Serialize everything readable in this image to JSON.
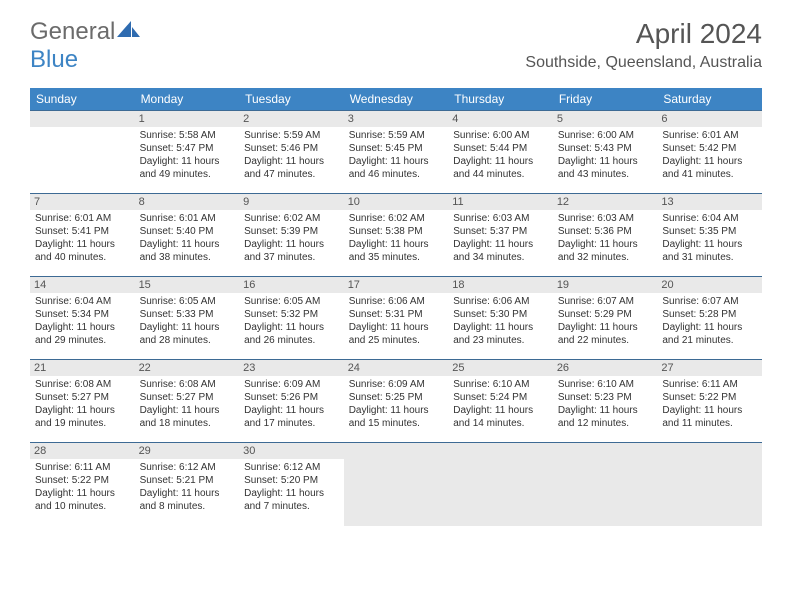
{
  "logo": {
    "word1": "General",
    "word2": "Blue"
  },
  "title": "April 2024",
  "subtitle": "Southside, Queensland, Australia",
  "columns": [
    "Sunday",
    "Monday",
    "Tuesday",
    "Wednesday",
    "Thursday",
    "Friday",
    "Saturday"
  ],
  "colors": {
    "header_bg": "#3d84c4",
    "header_fg": "#ffffff",
    "daynum_bg": "#e9e9e9",
    "border": "#3d6a94",
    "text": "#333333",
    "title_color": "#555555",
    "logo_accent": "#3d84c4"
  },
  "weeks": [
    [
      {
        "n": "",
        "lines": []
      },
      {
        "n": "1",
        "lines": [
          "Sunrise: 5:58 AM",
          "Sunset: 5:47 PM",
          "Daylight: 11 hours",
          "and 49 minutes."
        ]
      },
      {
        "n": "2",
        "lines": [
          "Sunrise: 5:59 AM",
          "Sunset: 5:46 PM",
          "Daylight: 11 hours",
          "and 47 minutes."
        ]
      },
      {
        "n": "3",
        "lines": [
          "Sunrise: 5:59 AM",
          "Sunset: 5:45 PM",
          "Daylight: 11 hours",
          "and 46 minutes."
        ]
      },
      {
        "n": "4",
        "lines": [
          "Sunrise: 6:00 AM",
          "Sunset: 5:44 PM",
          "Daylight: 11 hours",
          "and 44 minutes."
        ]
      },
      {
        "n": "5",
        "lines": [
          "Sunrise: 6:00 AM",
          "Sunset: 5:43 PM",
          "Daylight: 11 hours",
          "and 43 minutes."
        ]
      },
      {
        "n": "6",
        "lines": [
          "Sunrise: 6:01 AM",
          "Sunset: 5:42 PM",
          "Daylight: 11 hours",
          "and 41 minutes."
        ]
      }
    ],
    [
      {
        "n": "7",
        "lines": [
          "Sunrise: 6:01 AM",
          "Sunset: 5:41 PM",
          "Daylight: 11 hours",
          "and 40 minutes."
        ]
      },
      {
        "n": "8",
        "lines": [
          "Sunrise: 6:01 AM",
          "Sunset: 5:40 PM",
          "Daylight: 11 hours",
          "and 38 minutes."
        ]
      },
      {
        "n": "9",
        "lines": [
          "Sunrise: 6:02 AM",
          "Sunset: 5:39 PM",
          "Daylight: 11 hours",
          "and 37 minutes."
        ]
      },
      {
        "n": "10",
        "lines": [
          "Sunrise: 6:02 AM",
          "Sunset: 5:38 PM",
          "Daylight: 11 hours",
          "and 35 minutes."
        ]
      },
      {
        "n": "11",
        "lines": [
          "Sunrise: 6:03 AM",
          "Sunset: 5:37 PM",
          "Daylight: 11 hours",
          "and 34 minutes."
        ]
      },
      {
        "n": "12",
        "lines": [
          "Sunrise: 6:03 AM",
          "Sunset: 5:36 PM",
          "Daylight: 11 hours",
          "and 32 minutes."
        ]
      },
      {
        "n": "13",
        "lines": [
          "Sunrise: 6:04 AM",
          "Sunset: 5:35 PM",
          "Daylight: 11 hours",
          "and 31 minutes."
        ]
      }
    ],
    [
      {
        "n": "14",
        "lines": [
          "Sunrise: 6:04 AM",
          "Sunset: 5:34 PM",
          "Daylight: 11 hours",
          "and 29 minutes."
        ]
      },
      {
        "n": "15",
        "lines": [
          "Sunrise: 6:05 AM",
          "Sunset: 5:33 PM",
          "Daylight: 11 hours",
          "and 28 minutes."
        ]
      },
      {
        "n": "16",
        "lines": [
          "Sunrise: 6:05 AM",
          "Sunset: 5:32 PM",
          "Daylight: 11 hours",
          "and 26 minutes."
        ]
      },
      {
        "n": "17",
        "lines": [
          "Sunrise: 6:06 AM",
          "Sunset: 5:31 PM",
          "Daylight: 11 hours",
          "and 25 minutes."
        ]
      },
      {
        "n": "18",
        "lines": [
          "Sunrise: 6:06 AM",
          "Sunset: 5:30 PM",
          "Daylight: 11 hours",
          "and 23 minutes."
        ]
      },
      {
        "n": "19",
        "lines": [
          "Sunrise: 6:07 AM",
          "Sunset: 5:29 PM",
          "Daylight: 11 hours",
          "and 22 minutes."
        ]
      },
      {
        "n": "20",
        "lines": [
          "Sunrise: 6:07 AM",
          "Sunset: 5:28 PM",
          "Daylight: 11 hours",
          "and 21 minutes."
        ]
      }
    ],
    [
      {
        "n": "21",
        "lines": [
          "Sunrise: 6:08 AM",
          "Sunset: 5:27 PM",
          "Daylight: 11 hours",
          "and 19 minutes."
        ]
      },
      {
        "n": "22",
        "lines": [
          "Sunrise: 6:08 AM",
          "Sunset: 5:27 PM",
          "Daylight: 11 hours",
          "and 18 minutes."
        ]
      },
      {
        "n": "23",
        "lines": [
          "Sunrise: 6:09 AM",
          "Sunset: 5:26 PM",
          "Daylight: 11 hours",
          "and 17 minutes."
        ]
      },
      {
        "n": "24",
        "lines": [
          "Sunrise: 6:09 AM",
          "Sunset: 5:25 PM",
          "Daylight: 11 hours",
          "and 15 minutes."
        ]
      },
      {
        "n": "25",
        "lines": [
          "Sunrise: 6:10 AM",
          "Sunset: 5:24 PM",
          "Daylight: 11 hours",
          "and 14 minutes."
        ]
      },
      {
        "n": "26",
        "lines": [
          "Sunrise: 6:10 AM",
          "Sunset: 5:23 PM",
          "Daylight: 11 hours",
          "and 12 minutes."
        ]
      },
      {
        "n": "27",
        "lines": [
          "Sunrise: 6:11 AM",
          "Sunset: 5:22 PM",
          "Daylight: 11 hours",
          "and 11 minutes."
        ]
      }
    ],
    [
      {
        "n": "28",
        "lines": [
          "Sunrise: 6:11 AM",
          "Sunset: 5:22 PM",
          "Daylight: 11 hours",
          "and 10 minutes."
        ]
      },
      {
        "n": "29",
        "lines": [
          "Sunrise: 6:12 AM",
          "Sunset: 5:21 PM",
          "Daylight: 11 hours",
          "and 8 minutes."
        ]
      },
      {
        "n": "30",
        "lines": [
          "Sunrise: 6:12 AM",
          "Sunset: 5:20 PM",
          "Daylight: 11 hours",
          "and 7 minutes."
        ]
      },
      {
        "n": "",
        "lines": [],
        "blank": true
      },
      {
        "n": "",
        "lines": [],
        "blank": true
      },
      {
        "n": "",
        "lines": [],
        "blank": true
      },
      {
        "n": "",
        "lines": [],
        "blank": true
      }
    ]
  ]
}
